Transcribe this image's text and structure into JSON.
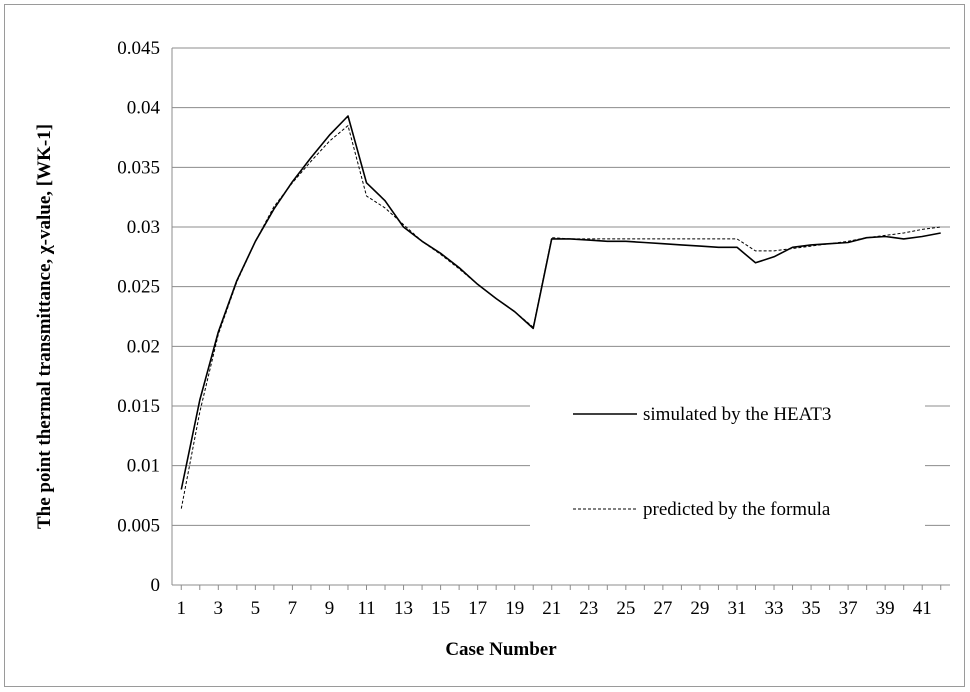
{
  "chart_data": {
    "type": "line",
    "title": "",
    "xlabel": "Case Number",
    "ylabel": "The point thermal transmittance, χ-value,  [WK-1]",
    "ylim": [
      0,
      0.045
    ],
    "yticks": [
      "0",
      "0.005",
      "0.01",
      "0.015",
      "0.02",
      "0.025",
      "0.03",
      "0.035",
      "0.04",
      "0.045"
    ],
    "yticks_values": [
      0,
      0.005,
      0.01,
      0.015,
      0.02,
      0.025,
      0.03,
      0.035,
      0.04,
      0.045
    ],
    "xticks": [
      "1",
      "3",
      "5",
      "7",
      "9",
      "11",
      "13",
      "15",
      "17",
      "19",
      "21",
      "23",
      "25",
      "27",
      "29",
      "31",
      "33",
      "35",
      "37",
      "39",
      "41"
    ],
    "xticks_values": [
      1,
      3,
      5,
      7,
      9,
      11,
      13,
      15,
      17,
      19,
      21,
      23,
      25,
      27,
      29,
      31,
      33,
      35,
      37,
      39,
      41
    ],
    "x": [
      1,
      2,
      3,
      4,
      5,
      6,
      7,
      8,
      9,
      10,
      11,
      12,
      13,
      14,
      15,
      16,
      17,
      18,
      19,
      20,
      21,
      22,
      23,
      24,
      25,
      26,
      27,
      28,
      29,
      30,
      31,
      32,
      33,
      34,
      35,
      36,
      37,
      38,
      39,
      40,
      41,
      42
    ],
    "grid": true,
    "legend_position": "center-right",
    "series": [
      {
        "name": "simulated by the HEAT3",
        "style": "solid",
        "color": "#000000",
        "values": [
          0.008,
          0.0155,
          0.0212,
          0.0255,
          0.0288,
          0.0315,
          0.0338,
          0.0358,
          0.0377,
          0.0393,
          0.0337,
          0.0322,
          0.03,
          0.0288,
          0.0278,
          0.0266,
          0.0252,
          0.024,
          0.0229,
          0.0215,
          0.029,
          0.029,
          0.0289,
          0.0288,
          0.0288,
          0.0287,
          0.0286,
          0.0285,
          0.0284,
          0.0283,
          0.0283,
          0.027,
          0.0275,
          0.0283,
          0.0285,
          0.0286,
          0.0287,
          0.0291,
          0.0292,
          0.029,
          0.0292,
          0.0295
        ]
      },
      {
        "name": "predicted by the formula",
        "style": "dashed",
        "color": "#000000",
        "values": [
          0.0064,
          0.0145,
          0.021,
          0.0254,
          0.0288,
          0.0317,
          0.0337,
          0.0355,
          0.0372,
          0.0385,
          0.0326,
          0.0316,
          0.0302,
          0.0288,
          0.0277,
          0.0265,
          0.0252,
          0.024,
          0.0229,
          0.0216,
          0.0291,
          0.029,
          0.029,
          0.029,
          0.029,
          0.029,
          0.029,
          0.029,
          0.029,
          0.029,
          0.029,
          0.028,
          0.028,
          0.0282,
          0.0284,
          0.0286,
          0.0288,
          0.0291,
          0.0293,
          0.0295,
          0.0298,
          0.03
        ]
      }
    ]
  }
}
